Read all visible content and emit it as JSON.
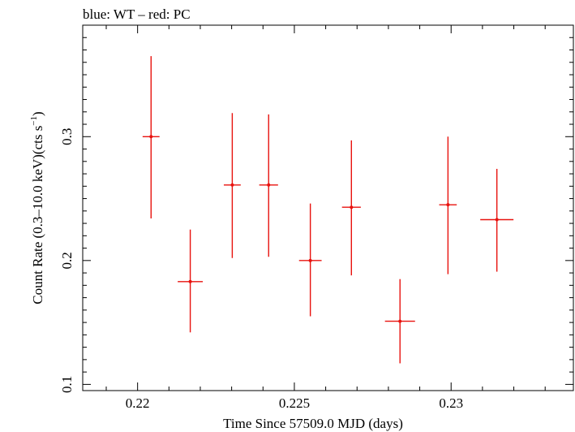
{
  "chart_data": {
    "type": "scatter",
    "title": "blue: WT – red: PC",
    "xlabel": "Time Since 57509.0 MJD (days)",
    "ylabel_main": "Count Rate (0.3–10.0 keV)(cts s",
    "ylabel_sup": "−1",
    "ylabel_end": ")",
    "xlim": [
      0.21825,
      0.2339
    ],
    "ylim": [
      0.095,
      0.39
    ],
    "x_ticks": [
      {
        "value": 0.22,
        "label": "0.22"
      },
      {
        "value": 0.225,
        "label": "0.225"
      },
      {
        "value": 0.23,
        "label": "0.23"
      }
    ],
    "y_ticks": [
      {
        "value": 0.1,
        "label": "0.1"
      },
      {
        "value": 0.2,
        "label": "0.2"
      },
      {
        "value": 0.3,
        "label": "0.3"
      }
    ],
    "grid": false,
    "series": [
      {
        "color": "#e8120e",
        "points": [
          {
            "x": 0.22043,
            "xerr": 0.00027,
            "y": 0.3,
            "ylo": 0.234,
            "yhi": 0.365
          },
          {
            "x": 0.22168,
            "xerr": 0.0004,
            "y": 0.183,
            "ylo": 0.142,
            "yhi": 0.225
          },
          {
            "x": 0.22302,
            "xerr": 0.00027,
            "y": 0.261,
            "ylo": 0.202,
            "yhi": 0.319
          },
          {
            "x": 0.22418,
            "xerr": 0.0003,
            "y": 0.261,
            "ylo": 0.203,
            "yhi": 0.318
          },
          {
            "x": 0.22551,
            "xerr": 0.00036,
            "y": 0.2,
            "ylo": 0.155,
            "yhi": 0.246
          },
          {
            "x": 0.22682,
            "xerr": 0.0003,
            "y": 0.243,
            "ylo": 0.188,
            "yhi": 0.297
          },
          {
            "x": 0.22837,
            "xerr": 0.00048,
            "y": 0.151,
            "ylo": 0.117,
            "yhi": 0.185
          },
          {
            "x": 0.2299,
            "xerr": 0.00028,
            "y": 0.245,
            "ylo": 0.189,
            "yhi": 0.3
          },
          {
            "x": 0.23146,
            "xerr": 0.00053,
            "y": 0.233,
            "ylo": 0.191,
            "yhi": 0.274
          }
        ]
      }
    ]
  }
}
